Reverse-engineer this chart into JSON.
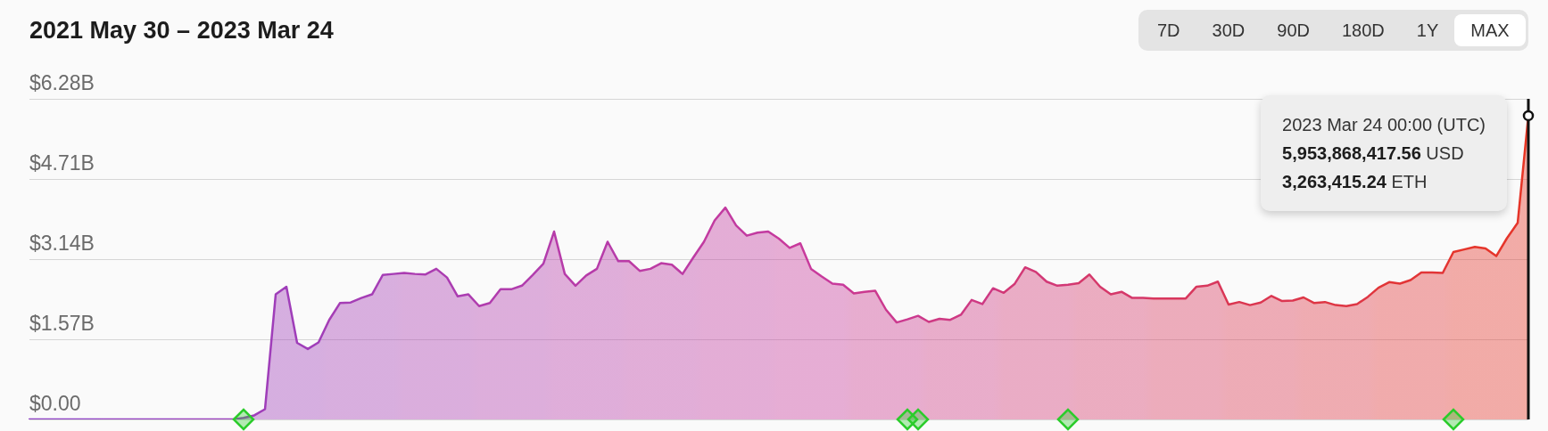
{
  "chart_data": {
    "type": "area",
    "title": "2021 May 30 – 2023 Mar 24",
    "categories": [
      null,
      null,
      null,
      null,
      null,
      null,
      null,
      null,
      null,
      null,
      null,
      null,
      null,
      null,
      null,
      null,
      null,
      null,
      null,
      null,
      null,
      null,
      null,
      null,
      null,
      null,
      null,
      null,
      null,
      null,
      null,
      null,
      null,
      null,
      null,
      null,
      null,
      null,
      null,
      null,
      null,
      null,
      null,
      null,
      null,
      null,
      null,
      null,
      null,
      null,
      null,
      null,
      null,
      null,
      null,
      null,
      null,
      null,
      null,
      null,
      null,
      null,
      null,
      null,
      null,
      null,
      null,
      null,
      null,
      null,
      null,
      null,
      null,
      null,
      null,
      null,
      null,
      null,
      null,
      null,
      null,
      null,
      null,
      null,
      null,
      null,
      null,
      null,
      null,
      null,
      null,
      null,
      null,
      null,
      null,
      null,
      null,
      null,
      null,
      null,
      null,
      null,
      null,
      null,
      null,
      null,
      null,
      null,
      null,
      null,
      null,
      null,
      null,
      null,
      null,
      null,
      null,
      null,
      null,
      null,
      null,
      null,
      null,
      null,
      null,
      null,
      null,
      null,
      null,
      null,
      null,
      null,
      null,
      null,
      null,
      null,
      null,
      null,
      null,
      null,
      null
    ],
    "series": [
      {
        "colors": [
          "#8e3fc6",
          "#8e3fc6",
          "#8e3fc6",
          "#8e3fc6",
          "#8e3fc6",
          "#8e3fc6",
          "#8e3fc6",
          "#943ec2",
          "#943ec2",
          "#943ec2",
          "#943ec2",
          "#943ec2",
          "#943ec2",
          "#943ec2",
          "#9a3ebe",
          "#9a3ebe",
          "#9a3ebe",
          "#9a3ebe",
          "#9a3ebe",
          "#9a3ebe",
          "#9a3ebe",
          "#9f3db9",
          "#9f3db9",
          "#9f3db9",
          "#9f3db9",
          "#9f3db9",
          "#9f3db9",
          "#9f3db9",
          "#a53db5",
          "#a53db5",
          "#a53db5",
          "#a53db5",
          "#a53db5",
          "#a53db5",
          "#a53db5",
          "#ab3cb1",
          "#ab3cb1",
          "#ab3cb1",
          "#ab3cb1",
          "#ab3cb1",
          "#ab3cb1",
          "#ab3cb1",
          "#b13cad",
          "#b13cad",
          "#b13cad",
          "#b13cad",
          "#b13cad",
          "#b13cad",
          "#b13cad",
          "#b73ba9",
          "#b73ba9",
          "#b73ba9",
          "#b73ba9",
          "#b73ba9",
          "#b73ba9",
          "#b73ba9",
          "#bc3ba4",
          "#bc3ba4",
          "#bc3ba4",
          "#bc3ba4",
          "#bc3ba4",
          "#bc3ba4",
          "#bc3ba4",
          "#c23aa0",
          "#c23aa0",
          "#c23aa0",
          "#c23aa0",
          "#c23aa0",
          "#c23aa0",
          "#c23aa0",
          "#c83a9c",
          "#c83a9c",
          "#c83a9c",
          "#c83a9c",
          "#c83a9c",
          "#c83a9c",
          "#c83a9c",
          "#cb398f",
          "#cb398f",
          "#cb398f",
          "#cb398f",
          "#cb398f",
          "#cb398f",
          "#cb398f",
          "#ce3983",
          "#ce3983",
          "#ce3983",
          "#ce3983",
          "#ce3983",
          "#ce3983",
          "#ce3983",
          "#d23876",
          "#d23876",
          "#d23876",
          "#d23876",
          "#d23876",
          "#d23876",
          "#d23876",
          "#d5386a",
          "#d5386a",
          "#d5386a",
          "#d5386a",
          "#d5386a",
          "#d5386a",
          "#d5386a",
          "#d8375d",
          "#d8375d",
          "#d8375d",
          "#d8375d",
          "#d8375d",
          "#d8375d",
          "#d8375d",
          "#db3650",
          "#db3650",
          "#db3650",
          "#db3650",
          "#db3650",
          "#db3650",
          "#db3650",
          "#de3644",
          "#de3644",
          "#de3644",
          "#de3644",
          "#de3644",
          "#de3644",
          "#de3644",
          "#e23537",
          "#e23537",
          "#e23537",
          "#e23537",
          "#e23537",
          "#e23537",
          "#e23537",
          "#e5352b",
          "#e5352b",
          "#e5352b",
          "#e5352b",
          "#e5352b",
          "#e5352b",
          "#e5352b",
          "#e8341e"
        ],
        "values": [
          0,
          0,
          0,
          0,
          0,
          0,
          0,
          0,
          0,
          0,
          0,
          0,
          0,
          0,
          0,
          0,
          0,
          0,
          0,
          0,
          0.03,
          0.08,
          0.2,
          2.45,
          2.6,
          1.5,
          1.38,
          1.51,
          1.95,
          2.28,
          2.29,
          2.38,
          2.45,
          2.83,
          2.85,
          2.87,
          2.85,
          2.84,
          2.95,
          2.78,
          2.41,
          2.45,
          2.22,
          2.28,
          2.55,
          2.55,
          2.62,
          2.83,
          3.05,
          3.68,
          2.85,
          2.62,
          2.82,
          2.95,
          3.48,
          3.1,
          3.1,
          2.91,
          2.95,
          3.06,
          3.03,
          2.85,
          3.17,
          3.48,
          3.9,
          4.15,
          3.8,
          3.6,
          3.66,
          3.68,
          3.54,
          3.36,
          3.45,
          2.95,
          2.8,
          2.66,
          2.64,
          2.47,
          2.5,
          2.52,
          2.15,
          1.9,
          1.96,
          2.03,
          1.91,
          1.97,
          1.95,
          2.05,
          2.34,
          2.26,
          2.57,
          2.48,
          2.65,
          2.98,
          2.89,
          2.7,
          2.62,
          2.64,
          2.67,
          2.84,
          2.6,
          2.45,
          2.5,
          2.38,
          2.38,
          2.37,
          2.37,
          2.37,
          2.37,
          2.6,
          2.62,
          2.7,
          2.25,
          2.3,
          2.24,
          2.29,
          2.42,
          2.32,
          2.33,
          2.39,
          2.28,
          2.3,
          2.24,
          2.22,
          2.26,
          2.4,
          2.58,
          2.69,
          2.66,
          2.73,
          2.88,
          2.88,
          2.87,
          3.28,
          3.33,
          3.38,
          3.35,
          3.2,
          3.55,
          3.85,
          5.95
        ]
      },
      {
        "type": "scatter",
        "color": "#2bcc2b",
        "marker": "diamond",
        "values": [
          null,
          null,
          null,
          null,
          null,
          null,
          null,
          null,
          null,
          null,
          null,
          null,
          null,
          null,
          null,
          null,
          null,
          null,
          null,
          null,
          0,
          null,
          null,
          null,
          null,
          null,
          null,
          null,
          null,
          null,
          null,
          null,
          null,
          null,
          null,
          null,
          null,
          null,
          null,
          null,
          null,
          null,
          null,
          null,
          null,
          null,
          null,
          null,
          null,
          null,
          null,
          null,
          null,
          null,
          null,
          null,
          null,
          null,
          null,
          null,
          null,
          null,
          null,
          null,
          null,
          null,
          null,
          null,
          null,
          null,
          null,
          null,
          null,
          null,
          null,
          null,
          null,
          null,
          null,
          null,
          null,
          null,
          0,
          0,
          null,
          null,
          null,
          null,
          null,
          null,
          null,
          null,
          null,
          null,
          null,
          null,
          null,
          0,
          null,
          null,
          null,
          null,
          null,
          null,
          null,
          null,
          null,
          null,
          null,
          null,
          null,
          null,
          null,
          null,
          null,
          null,
          null,
          null,
          null,
          null,
          null,
          null,
          null,
          null,
          null,
          null,
          null,
          null,
          null,
          null,
          null,
          null,
          null,
          0,
          null,
          null,
          null,
          null,
          null,
          null,
          null
        ]
      }
    ],
    "ylim": [
      0,
      6.28
    ],
    "yticks": [
      {
        "value": 0,
        "label": "$0.00"
      },
      {
        "value": 1.57,
        "label": "$1.57B"
      },
      {
        "value": 3.14,
        "label": "$3.14B"
      },
      {
        "value": 4.71,
        "label": "$4.71B"
      },
      {
        "value": 6.28,
        "label": "$6.28B"
      }
    ],
    "grid": "y",
    "legend": false,
    "tick_labels": "y",
    "annotations": [
      "7D",
      "30D",
      "90D",
      "180D",
      "1Y",
      "MAX",
      "2023 Mar 24 00:00 (UTC)",
      "5,953,868,417.56 USD",
      "3,263,415.24 ETH"
    ]
  }
}
